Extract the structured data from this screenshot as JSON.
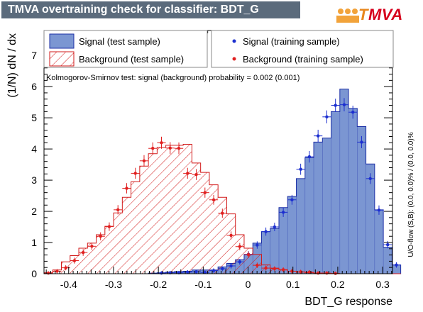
{
  "title": "TMVA overtraining check for classifier: BDT_G",
  "logo": {
    "text_prefix": "T",
    "text_rest": "MVA"
  },
  "chart_data": {
    "type": "histogram",
    "xlabel": "BDT_G response",
    "ylabel": "(1/N) dN / dx",
    "xlim": [
      -0.455,
      0.322
    ],
    "ylim": [
      0,
      7.8
    ],
    "xticks": [
      -0.4,
      -0.3,
      -0.2,
      -0.1,
      0,
      0.1,
      0.2,
      0.3
    ],
    "xtick_labels": [
      "-0.4",
      "-0.3",
      "-0.2",
      "-0.1",
      "0",
      "0.1",
      "0.2",
      "0.3"
    ],
    "yticks": [
      0,
      1,
      2,
      3,
      4,
      5,
      6,
      7
    ],
    "ytick_labels": [
      "0",
      "1",
      "2",
      "3",
      "4",
      "5",
      "6",
      "7"
    ],
    "annotation": "Kolmogorov-Smirnov test: signal (background) probability = 0.002 (0.001)",
    "side_label": "U/O-flow (S,B): (0.0, 0.0)% / (0.0, 0.0)%",
    "bin_edges_start": -0.455,
    "bin_width": 0.0194,
    "legend": {
      "signal_test": "Signal (test sample)",
      "background_test": "Background (test sample)",
      "signal_train": "Signal (training sample)",
      "background_train": "Background (training sample)"
    },
    "series": [
      {
        "name": "Signal (test sample)",
        "style": "filled-histogram",
        "color": "#7b96d2",
        "line_color": "#1c2fa6",
        "values": [
          0,
          0,
          0,
          0,
          0,
          0,
          0,
          0,
          0,
          0,
          0,
          0,
          0.02,
          0.03,
          0.05,
          0.07,
          0.08,
          0.12,
          0.12,
          0.12,
          0.22,
          0.33,
          0.45,
          0.62,
          0.98,
          1.35,
          1.45,
          2.12,
          2.48,
          3.05,
          3.72,
          4.22,
          4.35,
          5.2,
          5.92,
          5.3,
          4.72,
          3.52,
          2.05,
          0.85,
          0.28
        ]
      },
      {
        "name": "Background (test sample)",
        "style": "hatched-histogram",
        "color": "#d21a1a",
        "values": [
          0.03,
          0.12,
          0.38,
          0.58,
          0.82,
          0.98,
          1.25,
          1.52,
          1.95,
          2.45,
          2.95,
          3.45,
          3.85,
          4.05,
          4.12,
          4.12,
          4.15,
          3.55,
          3.25,
          2.85,
          2.45,
          1.92,
          1.25,
          0.82,
          0.62,
          0.28,
          0.18,
          0.12,
          0.08,
          0.05,
          0.03,
          0.02,
          0.01,
          0,
          0,
          0,
          0,
          0,
          0,
          0,
          0
        ]
      },
      {
        "name": "Signal (training sample)",
        "style": "markers",
        "color": "#1c2fcf",
        "values": [
          null,
          null,
          null,
          null,
          null,
          null,
          null,
          null,
          null,
          null,
          null,
          null,
          null,
          0.02,
          0.03,
          0.03,
          0.05,
          0.06,
          0.04,
          0.1,
          0.16,
          0.25,
          0.38,
          0.62,
          0.92,
          1.35,
          1.5,
          1.97,
          2.37,
          3.35,
          3.75,
          4.42,
          5.03,
          5.4,
          5.42,
          5.18,
          4.22,
          3.05,
          2.04,
          0.93,
          0.28
        ]
      },
      {
        "name": "Background (training sample)",
        "style": "markers",
        "color": "#e02020",
        "values": [
          0.02,
          0.08,
          0.19,
          0.42,
          0.68,
          0.88,
          1.2,
          1.51,
          2.05,
          2.74,
          3.22,
          3.62,
          4.02,
          4.2,
          4.03,
          4.02,
          3.22,
          3.18,
          2.6,
          2.37,
          1.94,
          1.23,
          0.87,
          0.61,
          0.27,
          0.18,
          0.16,
          0.13,
          0.08,
          0.06,
          0.05,
          0.02,
          0.02,
          0.01,
          null,
          null,
          null,
          null,
          null,
          null,
          null
        ]
      }
    ]
  }
}
